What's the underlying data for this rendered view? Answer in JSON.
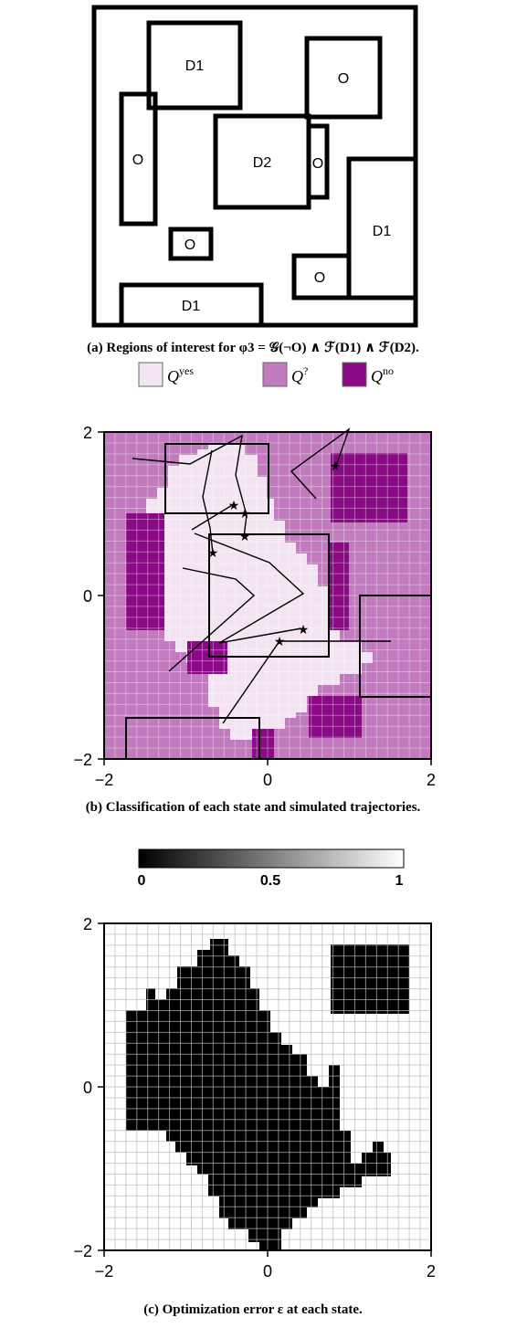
{
  "panel_a": {
    "caption": "(a) Regions of interest for φ3 = 𝒢(¬O) ∧ ℱ(D1) ∧ ℱ(D2).",
    "region_labels": [
      "D1",
      "O",
      "O",
      "D2",
      "O",
      "D1",
      "O",
      "O",
      "D1"
    ]
  },
  "panel_b": {
    "caption": "(b) Classification of each state and simulated trajectories.",
    "legend": [
      {
        "base": "Q",
        "sup": "yes",
        "color": "#f3e4f1"
      },
      {
        "base": "Q",
        "sup": "?",
        "color": "#c27bbf"
      },
      {
        "base": "Q",
        "sup": "no",
        "color": "#8a0a86"
      }
    ]
  },
  "panel_c": {
    "caption": "(c) Optimization error ε at each state.",
    "colorbar_ticks": [
      "0",
      "0.5",
      "1"
    ]
  },
  "chart_data": [
    {
      "type": "heatmap",
      "title": "",
      "xlim": [
        -2,
        2
      ],
      "ylim": [
        -2,
        2
      ],
      "xticks": [
        "−2",
        "0",
        "2"
      ],
      "yticks": [
        "2",
        "0",
        "−2"
      ],
      "grid": true,
      "legend_position": "top",
      "categories": [
        "Q^yes",
        "Q^?",
        "Q^no"
      ],
      "trajectory_end_marker": "★",
      "trajectory_count": 6
    },
    {
      "type": "heatmap",
      "title": "",
      "xlim": [
        -2,
        2
      ],
      "ylim": [
        -2,
        2
      ],
      "xticks": [
        "−2",
        "0",
        "2"
      ],
      "yticks": [
        "2",
        "0",
        "−2"
      ],
      "grid": true,
      "colorbar": {
        "range": [
          0,
          1
        ],
        "ticks": [
          "0",
          "0.5",
          "1"
        ],
        "position": "top",
        "low_color": "#000000",
        "high_color": "#ffffff"
      }
    }
  ]
}
